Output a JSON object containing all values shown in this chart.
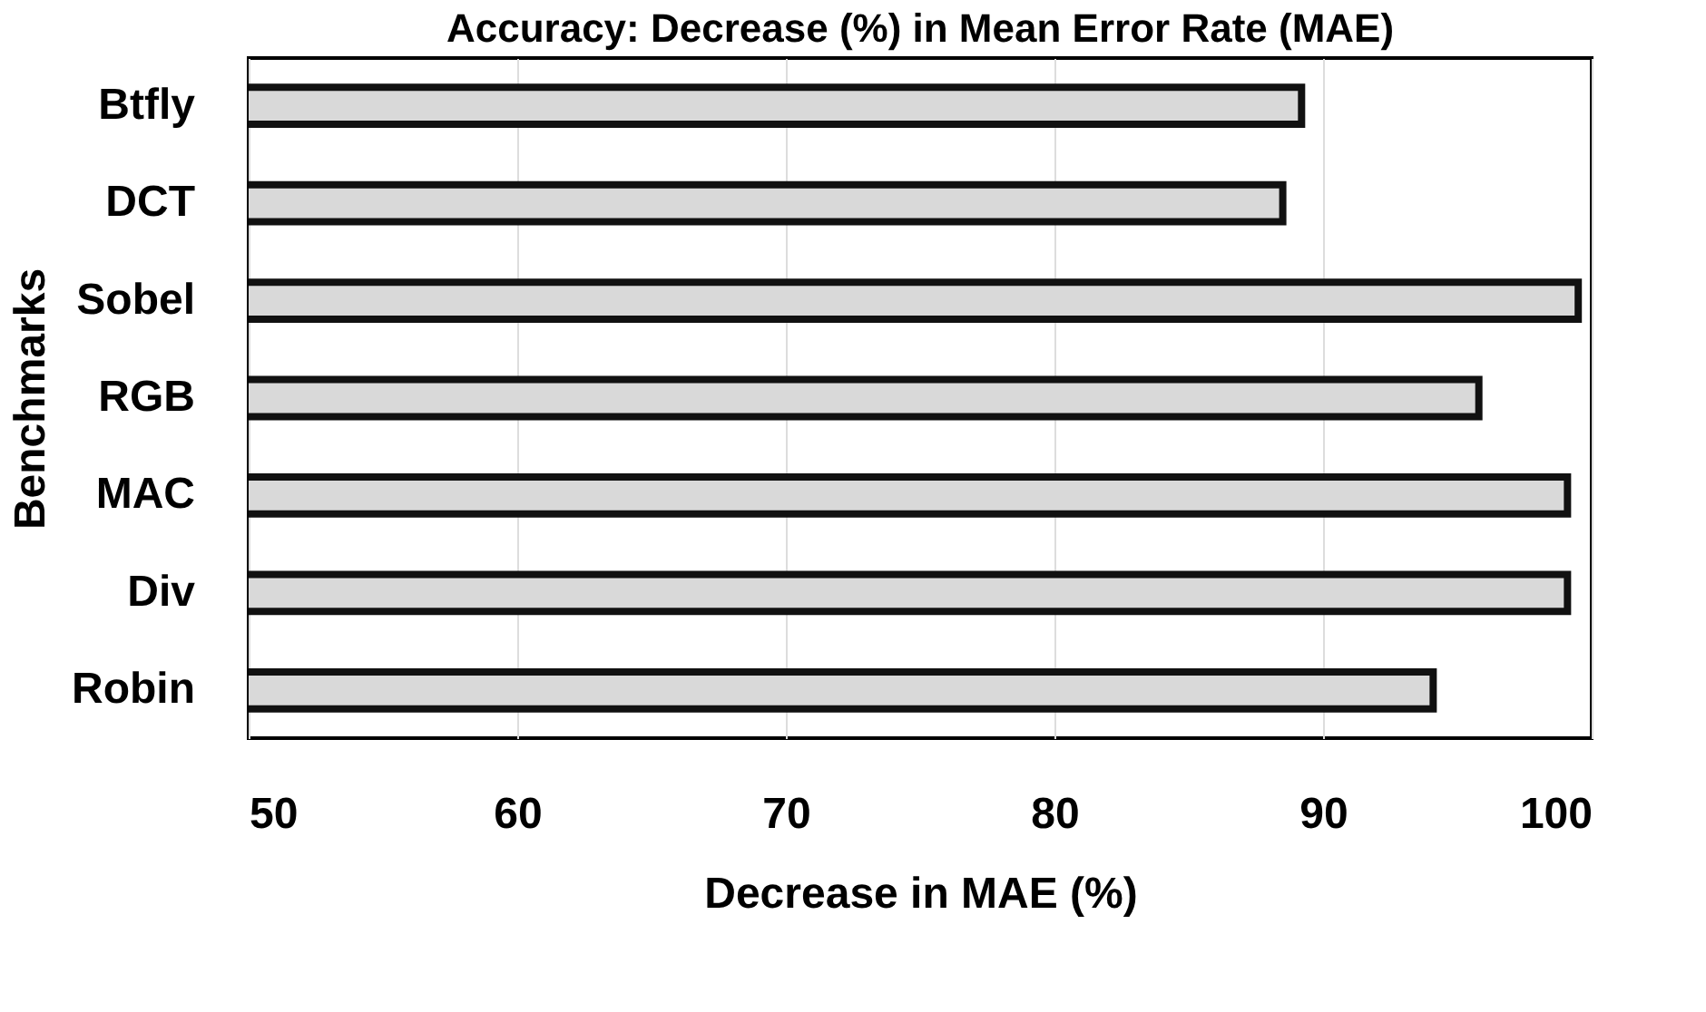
{
  "chart_data": {
    "type": "bar",
    "orientation": "horizontal",
    "title": "Accuracy: Decrease (%) in Mean Error Rate (MAE)",
    "xlabel": "Decrease in MAE (%)",
    "ylabel": "Benchmarks",
    "categories": [
      "Btfly",
      "DCT",
      "Sobel",
      "RGB",
      "MAC",
      "Div",
      "Robin"
    ],
    "values": [
      89.2,
      88.5,
      99.5,
      95.8,
      99.1,
      99.1,
      94.1
    ],
    "color": "#d9d9d9",
    "xlim": [
      50,
      100
    ],
    "xticks": [
      50,
      60,
      70,
      80,
      90,
      100
    ],
    "grid": "x"
  }
}
